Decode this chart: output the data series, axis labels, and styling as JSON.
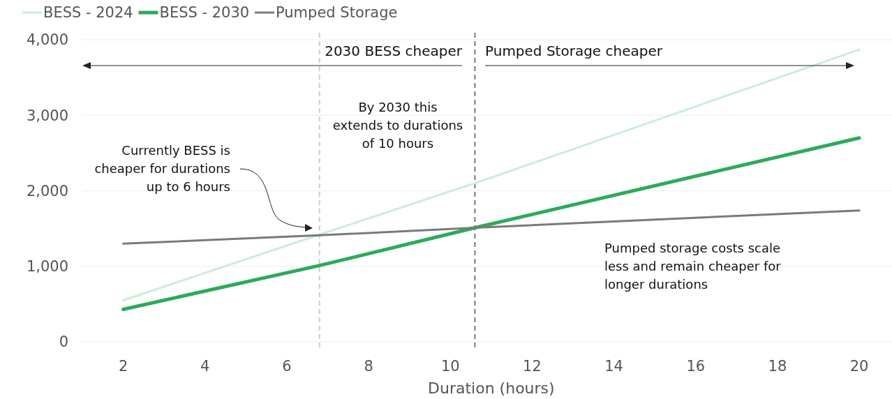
{
  "chart_data": {
    "type": "line",
    "xlabel": "Duration (hours)",
    "x": [
      2,
      6.8,
      10.6,
      20
    ],
    "series": [
      {
        "name": "BESS - 2024",
        "color": "#c8efd6",
        "values": [
          550,
          1420,
          2100,
          3870
        ]
      },
      {
        "name": "BESS - 2030",
        "color": "#2daa5a",
        "values": [
          430,
          1010,
          1510,
          2700
        ]
      },
      {
        "name": "Pumped Storage",
        "color": "#7a7a7a",
        "values": [
          1300,
          1410,
          1510,
          1740
        ]
      }
    ],
    "xlim": [
      1,
      20.8
    ],
    "ylim": [
      0,
      4000
    ],
    "xticks": [
      2,
      4,
      6,
      8,
      10,
      12,
      14,
      16,
      18,
      20
    ],
    "yticks": [
      0,
      {
        "value": 1000,
        "label": "1,000"
      },
      {
        "value": 2000,
        "label": "2,000"
      },
      {
        "value": 3000,
        "label": "3,000"
      },
      {
        "value": 4000,
        "label": "4,000"
      }
    ],
    "grid": "y",
    "legend": "top left",
    "marker": "none",
    "line_style": "solid",
    "ref_lines": [
      {
        "axis": "x",
        "value": 6.8,
        "color": "#cccccc",
        "line_style": "dashed"
      },
      {
        "axis": "x",
        "value": 10.6,
        "color": "#777777",
        "line_style": "dashed"
      }
    ],
    "annotations": [
      "2030 BESS cheaper",
      "Pumped Storage cheaper",
      "By 2030 this extends to durations of 10 hours",
      "Currently BESS is cheaper for durations up to 6 hours",
      "Pumped storage costs scale less and remain cheaper for longer durations"
    ]
  }
}
